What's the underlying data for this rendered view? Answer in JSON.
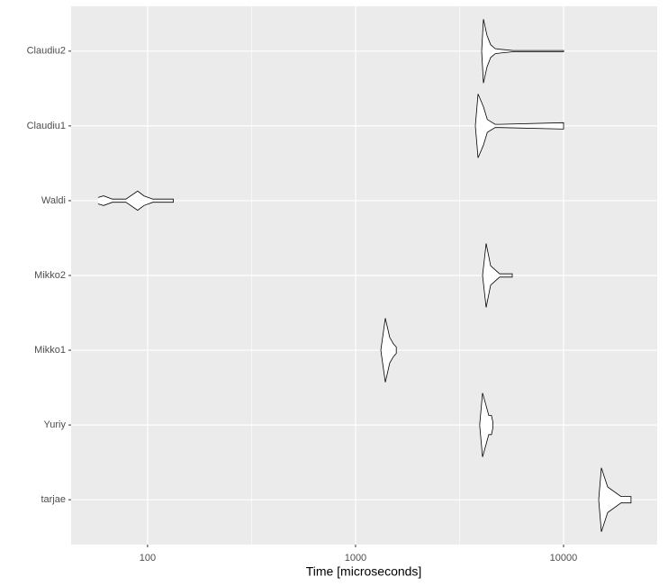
{
  "chart_data": {
    "type": "violin",
    "x_label": "Time [microseconds]",
    "log_x": true,
    "xlim": [
      42.9,
      28200
    ],
    "xticks": [
      100,
      1000,
      10000
    ],
    "grid": true,
    "color": "#ffffff",
    "outline": "#000000",
    "series": [
      {
        "name": "Claudiu2",
        "x": [
          4040,
          4120,
          4285,
          4460,
          4690,
          4930,
          5720,
          10000
        ],
        "values": [
          0,
          1,
          0.5,
          0.2,
          0.08,
          0.06,
          0.02,
          0.02
        ]
      },
      {
        "name": "Claudiu1",
        "x": [
          3765,
          3880,
          4120,
          4300,
          4690,
          4930,
          10000
        ],
        "values": [
          0,
          1,
          0.6,
          0.2,
          0.05,
          0.05,
          0.1
        ]
      },
      {
        "name": "Waldi",
        "x": [
          57.8,
          61.4,
          67.8,
          78.7,
          89.6,
          96.1,
          106,
          133
        ],
        "values": [
          0.1,
          0.15,
          0.05,
          0.05,
          0.3,
          0.15,
          0.05,
          0.05
        ]
      },
      {
        "name": "Mikko2",
        "x": [
          4080,
          4243,
          4460,
          4930,
          5670
        ],
        "values": [
          0,
          1,
          0.3,
          0.05,
          0.05
        ]
      },
      {
        "name": "Mikko1",
        "x": [
          1322,
          1390,
          1460,
          1520,
          1570
        ],
        "values": [
          0,
          1,
          0.4,
          0.2,
          0.1
        ]
      },
      {
        "name": "Yuriy",
        "x": [
          3950,
          4080,
          4243,
          4370,
          4500,
          4570
        ],
        "values": [
          0,
          1,
          0.6,
          0.3,
          0.3,
          0.1
        ]
      },
      {
        "name": "tarjae",
        "x": [
          14750,
          15200,
          16300,
          18900,
          21100
        ],
        "values": [
          0,
          1,
          0.4,
          0.1,
          0.1
        ]
      }
    ]
  }
}
